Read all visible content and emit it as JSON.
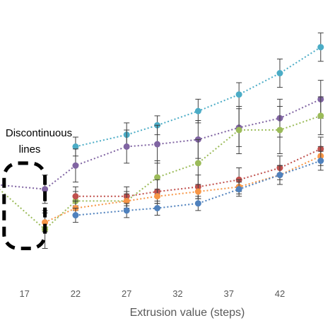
{
  "chart_data": {
    "type": "scatter",
    "xlabel": "Extrusion value (steps)",
    "ylabel": "",
    "title": "",
    "x_ticks": [
      17,
      22,
      27,
      32,
      37,
      42
    ],
    "xlim": [
      14.6,
      47.4
    ],
    "ylim": [
      0,
      100
    ],
    "grid": false,
    "annotation": {
      "lines": [
        "Discontinuous",
        "lines"
      ]
    },
    "highlight_box": {
      "x_range": [
        15,
        19
      ],
      "y_range": [
        13,
        49
      ]
    },
    "series": [
      {
        "color": "#4bacc6",
        "points": [
          {
            "x": 22,
            "y": 56,
            "err": 4
          },
          {
            "x": 27,
            "y": 61,
            "err": 5
          },
          {
            "x": 30,
            "y": 65,
            "err": 4
          },
          {
            "x": 34,
            "y": 71,
            "err": 5
          },
          {
            "x": 38,
            "y": 78,
            "err": 5
          },
          {
            "x": 42,
            "y": 87,
            "err": 6
          },
          {
            "x": 46,
            "y": 98,
            "err": 6
          }
        ]
      },
      {
        "color": "#8064a2",
        "points": [
          {
            "x": 14,
            "y": 40,
            "err": 6
          },
          {
            "x": 19,
            "y": 38,
            "err": 6
          },
          {
            "x": 22,
            "y": 48,
            "err": 7
          },
          {
            "x": 27,
            "y": 56,
            "err": 7
          },
          {
            "x": 30,
            "y": 57,
            "err": 8
          },
          {
            "x": 34,
            "y": 59,
            "err": 8
          },
          {
            "x": 38,
            "y": 64,
            "err": 8
          },
          {
            "x": 42,
            "y": 68,
            "err": 8
          },
          {
            "x": 46,
            "y": 76,
            "err": 8
          }
        ]
      },
      {
        "color": "#9bbb59",
        "points": [
          {
            "x": 14,
            "y": 40,
            "err": 6
          },
          {
            "x": 19,
            "y": 21,
            "err": 8
          },
          {
            "x": 22,
            "y": 33,
            "err": 4
          },
          {
            "x": 27,
            "y": 33,
            "err": 4
          },
          {
            "x": 30,
            "y": 43,
            "err": 7
          },
          {
            "x": 34,
            "y": 49,
            "err": 10
          },
          {
            "x": 38,
            "y": 63,
            "err": 10
          },
          {
            "x": 42,
            "y": 63,
            "err": 10
          },
          {
            "x": 46,
            "y": 69,
            "err": 8
          }
        ]
      },
      {
        "color": "#c0504d",
        "points": [
          {
            "x": 22,
            "y": 35,
            "err": 4
          },
          {
            "x": 27,
            "y": 35,
            "err": 4
          },
          {
            "x": 30,
            "y": 37,
            "err": 5
          },
          {
            "x": 34,
            "y": 39,
            "err": 5
          },
          {
            "x": 38,
            "y": 42,
            "err": 5
          },
          {
            "x": 42,
            "y": 47,
            "err": 5
          },
          {
            "x": 46,
            "y": 55,
            "err": 5
          }
        ]
      },
      {
        "color": "#f79646",
        "points": [
          {
            "x": 19,
            "y": 24,
            "err": 4
          },
          {
            "x": 22,
            "y": 30,
            "err": 3
          },
          {
            "x": 27,
            "y": 33,
            "err": 3
          },
          {
            "x": 30,
            "y": 35,
            "err": 3
          },
          {
            "x": 34,
            "y": 37,
            "err": 3
          },
          {
            "x": 38,
            "y": 39,
            "err": 3
          },
          {
            "x": 42,
            "y": 44,
            "err": 4
          },
          {
            "x": 46,
            "y": 52,
            "err": 4
          }
        ]
      },
      {
        "color": "#4f81bd",
        "points": [
          {
            "x": 22,
            "y": 27,
            "err": 3
          },
          {
            "x": 27,
            "y": 29,
            "err": 3
          },
          {
            "x": 30,
            "y": 30,
            "err": 3
          },
          {
            "x": 34,
            "y": 32,
            "err": 3
          },
          {
            "x": 38,
            "y": 38,
            "err": 3
          },
          {
            "x": 42,
            "y": 44,
            "err": 4
          },
          {
            "x": 46,
            "y": 50,
            "err": 4
          }
        ]
      }
    ]
  }
}
